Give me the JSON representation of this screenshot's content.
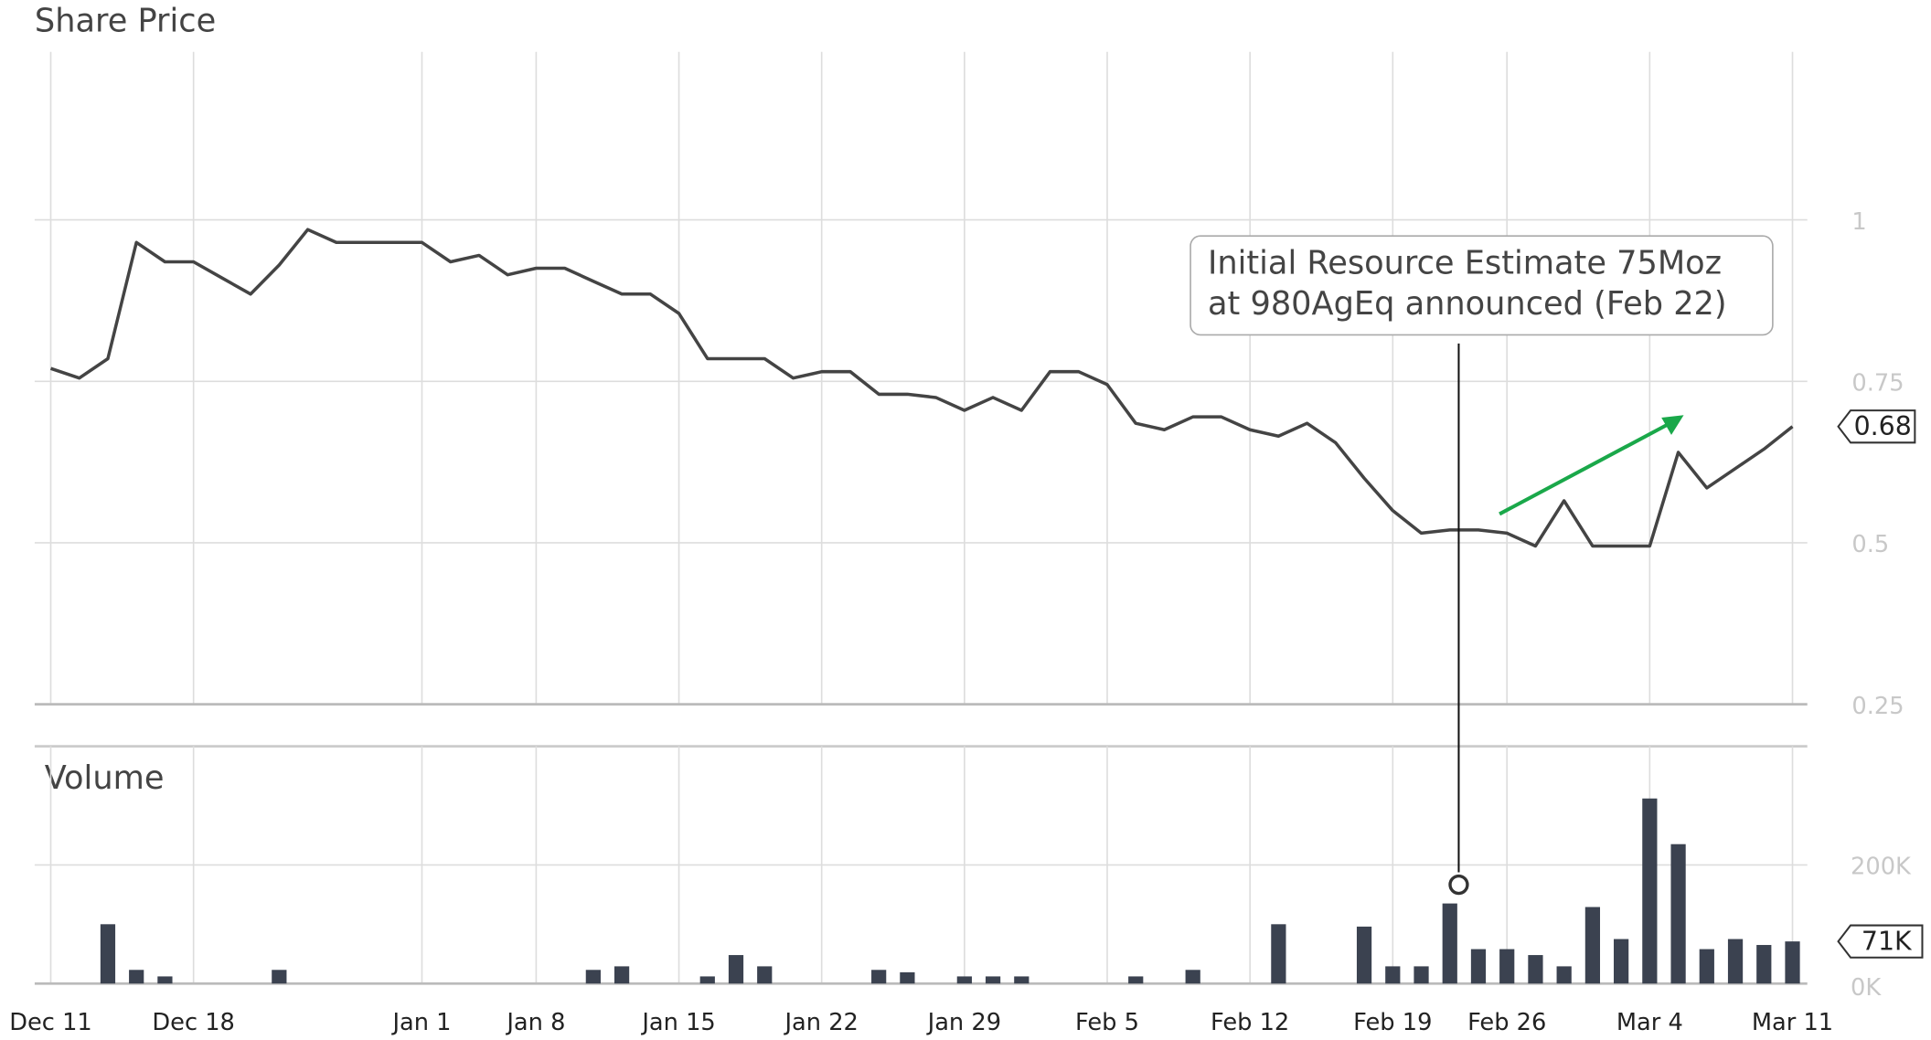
{
  "chart_data": [
    {
      "type": "line",
      "title": "Share Price",
      "color": "#444444",
      "categories": [
        "Dec 11",
        null,
        null,
        null,
        null,
        "Dec 18",
        null,
        null,
        null,
        null,
        null,
        null,
        null,
        "Jan 1",
        null,
        null,
        null,
        "Jan 8",
        null,
        null,
        null,
        null,
        "Jan 15",
        null,
        null,
        null,
        null,
        "Jan 22",
        null,
        null,
        null,
        null,
        "Jan 29",
        null,
        null,
        null,
        null,
        "Feb 5",
        null,
        null,
        null,
        null,
        "Feb 12",
        null,
        null,
        null,
        null,
        "Feb 19",
        null,
        null,
        null,
        "Feb 26",
        null,
        null,
        null,
        null,
        "Mar 4",
        null,
        null,
        null,
        null,
        "Mar 11"
      ],
      "values": [
        0.77,
        0.755,
        0.785,
        0.965,
        0.935,
        0.935,
        0.91,
        0.885,
        0.93,
        0.985,
        0.965,
        0.965,
        0.965,
        0.965,
        0.935,
        0.945,
        0.915,
        0.925,
        0.925,
        0.905,
        0.885,
        0.885,
        0.855,
        0.785,
        0.785,
        0.785,
        0.755,
        0.765,
        0.765,
        0.73,
        0.73,
        0.725,
        0.705,
        0.725,
        0.705,
        0.765,
        0.765,
        0.745,
        0.685,
        0.675,
        0.695,
        0.695,
        0.675,
        0.665,
        0.685,
        0.655,
        0.6,
        0.55,
        0.515,
        0.52,
        0.52,
        0.515,
        0.495,
        0.565,
        0.495,
        0.495,
        0.495,
        0.64,
        0.585,
        0.615,
        0.645,
        0.68
      ],
      "ylim": [
        0.25,
        1.26
      ],
      "yticks": [
        0.25,
        0.5,
        0.75,
        1
      ],
      "grid": true,
      "annotation": [
        "Initial Resource Estimate 75Moz",
        "at 980AgEq announced (Feb 22)"
      ]
    },
    {
      "type": "bar",
      "title": "Volume",
      "color": "#3b4250",
      "values": [
        0,
        0,
        100000,
        23000,
        12000,
        0,
        0,
        0,
        23000,
        0,
        0,
        0,
        0,
        0,
        0,
        0,
        0,
        0,
        0,
        23000,
        29000,
        0,
        0,
        12000,
        48000,
        29000,
        0,
        0,
        0,
        23000,
        19000,
        0,
        12000,
        12000,
        12000,
        0,
        0,
        0,
        12000,
        0,
        23000,
        0,
        0,
        100000,
        0,
        0,
        96000,
        29000,
        29000,
        135000,
        58000,
        58000,
        48000,
        29000,
        129000,
        75000,
        312000,
        235000,
        58000,
        75000,
        65000,
        71000
      ],
      "last_label": "71K",
      "ylim": [
        0,
        400000
      ],
      "yticks": [
        {
          "value": 0,
          "label": "0K"
        },
        {
          "value": 200000,
          "label": "200K"
        }
      ],
      "grid": true
    }
  ]
}
